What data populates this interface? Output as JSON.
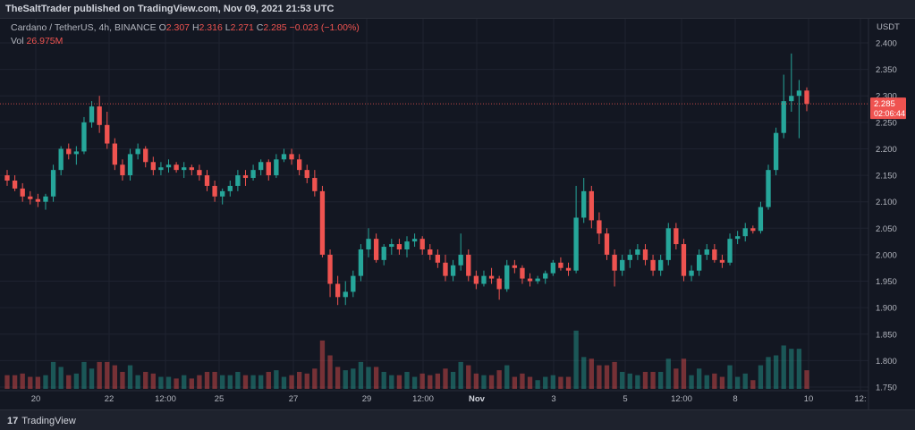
{
  "header": {
    "text": "TheSaltTrader published on TradingView.com, Nov 09, 2021 21:53 UTC"
  },
  "legend": {
    "symbol": "Cardano / TetherUS, 4h, BINANCE",
    "o_label": "O",
    "o": "2.307",
    "h_label": "H",
    "h": "2.316",
    "l_label": "L",
    "l": "2.271",
    "c_label": "C",
    "c": "2.285",
    "change": "−0.023 (−1.00%)",
    "vol_label": "Vol",
    "vol": "26.975M"
  },
  "currency": "USDT",
  "price_label": {
    "price": "2.285",
    "countdown": "02:06:44"
  },
  "footer": {
    "brand": "TradingView",
    "logo_glyph": "17"
  },
  "colors": {
    "bg": "#131722",
    "up": "#26a69a",
    "down": "#ef5350",
    "grid": "#1f2330",
    "text": "#b2b5be"
  },
  "chart_data": {
    "type": "candlestick",
    "y_ticks": [
      "2.400",
      "2.350",
      "2.300",
      "2.250",
      "2.200",
      "2.150",
      "2.100",
      "2.050",
      "2.000",
      "1.950",
      "1.900",
      "1.850",
      "1.800",
      "1.750"
    ],
    "ylim": [
      1.74,
      2.42
    ],
    "x_ticks": [
      "20",
      "22",
      "12:00",
      "25",
      "27",
      "29",
      "12:00",
      "Nov",
      "3",
      "5",
      "12:00",
      "8",
      "10",
      "12:"
    ],
    "candles": [
      [
        2.15,
        2.16,
        2.13,
        2.14
      ],
      [
        2.14,
        2.15,
        2.12,
        2.125
      ],
      [
        2.125,
        2.135,
        2.1,
        2.11
      ],
      [
        2.11,
        2.12,
        2.095,
        2.105
      ],
      [
        2.105,
        2.115,
        2.09,
        2.1
      ],
      [
        2.1,
        2.115,
        2.085,
        2.11
      ],
      [
        2.11,
        2.17,
        2.1,
        2.16
      ],
      [
        2.16,
        2.205,
        2.15,
        2.2
      ],
      [
        2.2,
        2.21,
        2.18,
        2.19
      ],
      [
        2.19,
        2.205,
        2.17,
        2.195
      ],
      [
        2.195,
        2.26,
        2.19,
        2.25
      ],
      [
        2.25,
        2.29,
        2.24,
        2.28
      ],
      [
        2.28,
        2.3,
        2.23,
        2.245
      ],
      [
        2.245,
        2.27,
        2.2,
        2.21
      ],
      [
        2.21,
        2.22,
        2.16,
        2.17
      ],
      [
        2.17,
        2.18,
        2.14,
        2.15
      ],
      [
        2.15,
        2.2,
        2.14,
        2.19
      ],
      [
        2.19,
        2.21,
        2.18,
        2.2
      ],
      [
        2.2,
        2.205,
        2.165,
        2.175
      ],
      [
        2.175,
        2.185,
        2.15,
        2.16
      ],
      [
        2.16,
        2.175,
        2.15,
        2.165
      ],
      [
        2.165,
        2.18,
        2.155,
        2.17
      ],
      [
        2.17,
        2.175,
        2.155,
        2.16
      ],
      [
        2.16,
        2.175,
        2.145,
        2.165
      ],
      [
        2.165,
        2.17,
        2.15,
        2.16
      ],
      [
        2.16,
        2.17,
        2.14,
        2.15
      ],
      [
        2.15,
        2.16,
        2.12,
        2.13
      ],
      [
        2.13,
        2.14,
        2.1,
        2.11
      ],
      [
        2.11,
        2.125,
        2.095,
        2.12
      ],
      [
        2.12,
        2.14,
        2.11,
        2.13
      ],
      [
        2.13,
        2.16,
        2.12,
        2.15
      ],
      [
        2.15,
        2.16,
        2.13,
        2.145
      ],
      [
        2.145,
        2.17,
        2.14,
        2.16
      ],
      [
        2.16,
        2.18,
        2.15,
        2.175
      ],
      [
        2.175,
        2.18,
        2.14,
        2.15
      ],
      [
        2.15,
        2.19,
        2.145,
        2.18
      ],
      [
        2.18,
        2.2,
        2.175,
        2.19
      ],
      [
        2.19,
        2.2,
        2.17,
        2.18
      ],
      [
        2.18,
        2.19,
        2.15,
        2.16
      ],
      [
        2.16,
        2.17,
        2.135,
        2.145
      ],
      [
        2.145,
        2.16,
        2.11,
        2.12
      ],
      [
        2.12,
        2.13,
        1.995,
        2.0
      ],
      [
        2.0,
        2.01,
        1.92,
        1.945
      ],
      [
        1.945,
        1.96,
        1.905,
        1.92
      ],
      [
        1.92,
        1.95,
        1.905,
        1.93
      ],
      [
        1.93,
        1.97,
        1.92,
        1.96
      ],
      [
        1.96,
        2.02,
        1.95,
        2.01
      ],
      [
        2.01,
        2.05,
        1.995,
        2.03
      ],
      [
        2.03,
        2.04,
        1.985,
        1.99
      ],
      [
        1.99,
        2.02,
        1.98,
        2.015
      ],
      [
        2.015,
        2.03,
        2.0,
        2.02
      ],
      [
        2.02,
        2.03,
        2.0,
        2.01
      ],
      [
        2.01,
        2.035,
        1.995,
        2.025
      ],
      [
        2.025,
        2.04,
        2.015,
        2.03
      ],
      [
        2.03,
        2.035,
        2.0,
        2.01
      ],
      [
        2.01,
        2.02,
        1.99,
        2.0
      ],
      [
        2.0,
        2.01,
        1.975,
        1.985
      ],
      [
        1.985,
        2.0,
        1.95,
        1.96
      ],
      [
        1.96,
        1.99,
        1.95,
        1.98
      ],
      [
        1.98,
        2.04,
        1.97,
        2.0
      ],
      [
        2.0,
        2.01,
        1.95,
        1.96
      ],
      [
        1.96,
        1.97,
        1.935,
        1.945
      ],
      [
        1.945,
        1.97,
        1.94,
        1.96
      ],
      [
        1.96,
        1.975,
        1.945,
        1.955
      ],
      [
        1.955,
        1.96,
        1.915,
        1.935
      ],
      [
        1.935,
        1.99,
        1.93,
        1.98
      ],
      [
        1.98,
        1.99,
        1.965,
        1.975
      ],
      [
        1.975,
        1.98,
        1.945,
        1.955
      ],
      [
        1.955,
        1.965,
        1.94,
        1.95
      ],
      [
        1.95,
        1.96,
        1.945,
        1.955
      ],
      [
        1.955,
        1.97,
        1.945,
        1.965
      ],
      [
        1.965,
        1.99,
        1.96,
        1.985
      ],
      [
        1.985,
        1.995,
        1.97,
        1.975
      ],
      [
        1.975,
        1.985,
        1.96,
        1.97
      ],
      [
        1.97,
        2.13,
        1.965,
        2.07
      ],
      [
        2.07,
        2.145,
        2.06,
        2.12
      ],
      [
        2.12,
        2.13,
        2.05,
        2.065
      ],
      [
        2.065,
        2.08,
        2.02,
        2.04
      ],
      [
        2.04,
        2.05,
        1.99,
        2.0
      ],
      [
        2.0,
        2.01,
        1.94,
        1.97
      ],
      [
        1.97,
        2.0,
        1.96,
        1.99
      ],
      [
        1.99,
        2.01,
        1.975,
        2.0
      ],
      [
        2.0,
        2.02,
        1.99,
        2.01
      ],
      [
        2.01,
        2.02,
        1.98,
        1.99
      ],
      [
        1.99,
        2.0,
        1.96,
        1.97
      ],
      [
        1.97,
        2.0,
        1.96,
        1.99
      ],
      [
        1.99,
        2.06,
        1.98,
        2.05
      ],
      [
        2.05,
        2.06,
        2.01,
        2.02
      ],
      [
        2.02,
        2.03,
        1.95,
        1.96
      ],
      [
        1.96,
        1.98,
        1.95,
        1.97
      ],
      [
        1.97,
        2.01,
        1.96,
        2.0
      ],
      [
        2.0,
        2.02,
        1.99,
        2.01
      ],
      [
        2.01,
        2.02,
        1.985,
        1.99
      ],
      [
        1.99,
        2.0,
        1.975,
        1.985
      ],
      [
        1.985,
        2.04,
        1.98,
        2.03
      ],
      [
        2.03,
        2.045,
        2.02,
        2.035
      ],
      [
        2.035,
        2.06,
        2.025,
        2.05
      ],
      [
        2.05,
        2.055,
        2.04,
        2.045
      ],
      [
        2.045,
        2.1,
        2.04,
        2.09
      ],
      [
        2.09,
        2.17,
        2.085,
        2.16
      ],
      [
        2.16,
        2.24,
        2.15,
        2.23
      ],
      [
        2.23,
        2.34,
        2.22,
        2.29
      ],
      [
        2.29,
        2.38,
        2.27,
        2.3
      ],
      [
        2.3,
        2.33,
        2.22,
        2.31
      ],
      [
        2.31,
        2.316,
        2.271,
        2.285
      ]
    ],
    "volume_ylim": [
      0,
      90
    ]
  }
}
